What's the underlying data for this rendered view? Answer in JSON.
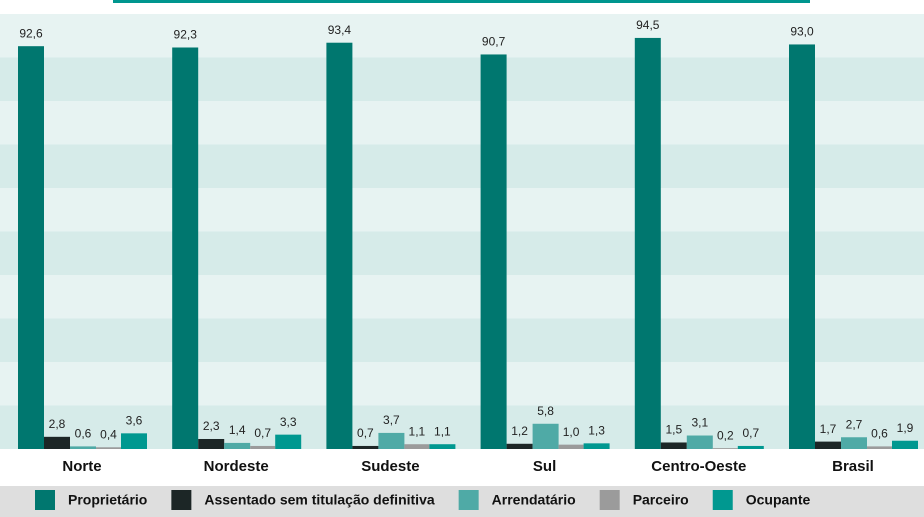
{
  "chart_data": {
    "type": "bar",
    "categories": [
      "Norte",
      "Nordeste",
      "Sudeste",
      "Sul",
      "Centro-Oeste",
      "Brasil"
    ],
    "ylim": [
      0,
      100
    ],
    "series": [
      {
        "name": "Proprietário",
        "color": "#00776f",
        "values": [
          92.6,
          92.3,
          93.4,
          90.7,
          94.5,
          93.0
        ],
        "value_labels": [
          "92,6",
          "92,3",
          "93,4",
          "90,7",
          "94,5",
          "93,0"
        ]
      },
      {
        "name": "Assentado sem titulação definitiva",
        "color": "#1c2626",
        "values": [
          2.8,
          2.3,
          0.7,
          1.2,
          1.5,
          1.7
        ],
        "value_labels": [
          "2,8",
          "2,3",
          "0,7",
          "1,2",
          "1,5",
          "1,7"
        ]
      },
      {
        "name": "Arrendatário",
        "color": "#4faaa6",
        "values": [
          0.6,
          1.4,
          3.7,
          5.8,
          3.1,
          2.7
        ],
        "value_labels": [
          "0,6",
          "1,4",
          "3,7",
          "5,8",
          "3,1",
          "2,7"
        ]
      },
      {
        "name": "Parceiro",
        "color": "#9b9b9b",
        "values": [
          0.4,
          0.7,
          1.1,
          1.0,
          0.2,
          0.6
        ],
        "value_labels": [
          "0,4",
          "0,7",
          "1,1",
          "1,0",
          "0,2",
          "0,6"
        ]
      },
      {
        "name": "Ocupante",
        "color": "#009890",
        "values": [
          3.6,
          3.3,
          1.1,
          1.3,
          0.7,
          1.9
        ],
        "value_labels": [
          "3,6",
          "3,3",
          "1,1",
          "1,3",
          "0,7",
          "1,9"
        ]
      }
    ]
  }
}
